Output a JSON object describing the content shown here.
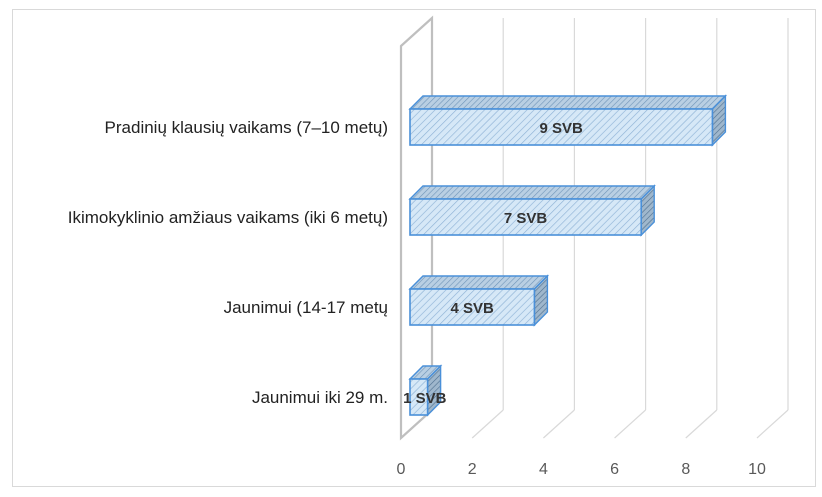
{
  "chart_data": {
    "type": "bar",
    "orientation": "horizontal",
    "style": "3d-clustered-bar",
    "categories": [
      "Pradinių klausių vaikams (7–10 metų)",
      "Ikimokyklinio amžiaus vaikams (iki 6 metų)",
      "Jaunimui (14-17 metų",
      "Jaunimui iki 29 m."
    ],
    "values": [
      9,
      7,
      4,
      1
    ],
    "data_labels": [
      "9 SVB",
      "7 SVB",
      "4 SVB",
      "1 SVB"
    ],
    "xlim": [
      0,
      10
    ],
    "xticks": [
      "0",
      "2",
      "4",
      "6",
      "8",
      "10"
    ],
    "grid": true,
    "bar_fill": "#cfe3f5",
    "bar_hatch_color": "#8fb3d6",
    "bar_stroke": "#4a90d9",
    "gridline_color": "#d9d9d9",
    "axis_wall_color": "#bfbfbf"
  }
}
